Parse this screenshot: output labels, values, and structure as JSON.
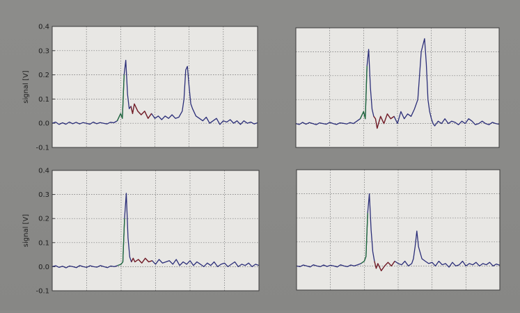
{
  "colors": {
    "background": "#8a8a88",
    "plot_face": "#e8e7e4",
    "frame": "#3a3a3a",
    "grid": "#6f6f6f",
    "trace_main": "#2a2d78",
    "trace_onset": "#1f6b3a",
    "trace_detail": "#7a1e22"
  },
  "chart_data": [
    {
      "type": "line",
      "ylabel": "signal [V]",
      "ylim": [
        -0.1,
        0.4
      ],
      "xlim": [
        0,
        6
      ],
      "yticks": [
        "-0.1",
        "0.0",
        "0.1",
        "0.2",
        "0.3",
        "0.4"
      ],
      "grid": true,
      "series": [
        {
          "color": "#2a2d78",
          "x": [
            0,
            0.1,
            0.2,
            0.3,
            0.4,
            0.5,
            0.6,
            0.7,
            0.8,
            0.9,
            1.0,
            1.1,
            1.2,
            1.3,
            1.4,
            1.5,
            1.6,
            1.7,
            1.8,
            1.9,
            2.0,
            2.05,
            2.1,
            2.15,
            2.2,
            2.25,
            2.3,
            2.35,
            2.4,
            2.5,
            2.6,
            2.7,
            2.8,
            2.9,
            3.0,
            3.1,
            3.2,
            3.3,
            3.4,
            3.5,
            3.6,
            3.7,
            3.8,
            3.85,
            3.9,
            3.95,
            4.0,
            4.05,
            4.1,
            4.2,
            4.3,
            4.4,
            4.5,
            4.6,
            4.7,
            4.8,
            4.9,
            5.0,
            5.1,
            5.2,
            5.3,
            5.4,
            5.5,
            5.6,
            5.7,
            5.8,
            5.9,
            6.0
          ],
          "y": [
            0.0,
            0.005,
            -0.005,
            0.002,
            -0.004,
            0.005,
            -0.002,
            0.004,
            -0.003,
            0.003,
            0.0,
            -0.004,
            0.005,
            -0.002,
            0.003,
            0.0,
            -0.003,
            0.004,
            0.002,
            0.01,
            0.04,
            0.02,
            0.2,
            0.26,
            0.12,
            0.06,
            0.07,
            0.04,
            0.08,
            0.05,
            0.035,
            0.05,
            0.02,
            0.04,
            0.02,
            0.03,
            0.015,
            0.03,
            0.02,
            0.035,
            0.02,
            0.025,
            0.05,
            0.1,
            0.22,
            0.235,
            0.15,
            0.08,
            0.06,
            0.03,
            0.02,
            0.01,
            0.025,
            0.0,
            0.01,
            0.02,
            -0.005,
            0.01,
            0.005,
            0.015,
            0.0,
            0.01,
            -0.005,
            0.01,
            0.0,
            0.005,
            -0.003,
            0.002
          ]
        }
      ]
    },
    {
      "type": "line",
      "ylabel": "",
      "ylim": [
        -0.1,
        0.4
      ],
      "xlim": [
        0,
        6
      ],
      "yticks": [],
      "grid": true,
      "series": [
        {
          "color": "#2a2d78",
          "x": [
            0,
            0.1,
            0.2,
            0.3,
            0.4,
            0.5,
            0.6,
            0.7,
            0.8,
            0.9,
            1.0,
            1.1,
            1.2,
            1.3,
            1.4,
            1.5,
            1.6,
            1.7,
            1.8,
            1.9,
            2.0,
            2.05,
            2.1,
            2.15,
            2.2,
            2.25,
            2.3,
            2.35,
            2.4,
            2.5,
            2.6,
            2.7,
            2.8,
            2.9,
            3.0,
            3.1,
            3.2,
            3.3,
            3.4,
            3.5,
            3.6,
            3.7,
            3.8,
            3.85,
            3.9,
            3.95,
            4.0,
            4.05,
            4.1,
            4.2,
            4.3,
            4.4,
            4.5,
            4.6,
            4.7,
            4.8,
            4.9,
            5.0,
            5.1,
            5.2,
            5.3,
            5.4,
            5.5,
            5.6,
            5.7,
            5.8,
            5.9,
            6.0
          ],
          "y": [
            0.0,
            -0.004,
            0.005,
            -0.003,
            0.004,
            0.0,
            -0.005,
            0.003,
            0.0,
            -0.003,
            0.005,
            0.0,
            -0.004,
            0.003,
            0.001,
            -0.002,
            0.004,
            0.0,
            0.01,
            0.02,
            0.05,
            0.02,
            0.24,
            0.31,
            0.15,
            0.06,
            0.03,
            0.02,
            -0.02,
            0.03,
            0.0,
            0.04,
            0.02,
            0.03,
            0.0,
            0.05,
            0.02,
            0.04,
            0.03,
            0.06,
            0.1,
            0.3,
            0.355,
            0.25,
            0.1,
            0.05,
            0.02,
            0.0,
            -0.01,
            0.01,
            0.0,
            0.02,
            0.0,
            0.01,
            0.005,
            -0.005,
            0.01,
            0.0,
            0.02,
            0.01,
            -0.005,
            0.0,
            0.01,
            0.0,
            -0.005,
            0.005,
            0.0,
            -0.003
          ]
        }
      ]
    },
    {
      "type": "line",
      "ylabel": "signal [V]",
      "ylim": [
        -0.1,
        0.4
      ],
      "xlim": [
        0,
        6
      ],
      "yticks": [
        "-0.1",
        "0.0",
        "0.1",
        "0.2",
        "0.3",
        "0.4"
      ],
      "grid": true,
      "series": [
        {
          "color": "#2a2d78",
          "x": [
            0,
            0.1,
            0.2,
            0.3,
            0.4,
            0.5,
            0.6,
            0.7,
            0.8,
            0.9,
            1.0,
            1.1,
            1.2,
            1.3,
            1.4,
            1.5,
            1.6,
            1.7,
            1.8,
            1.9,
            2.0,
            2.05,
            2.1,
            2.15,
            2.2,
            2.25,
            2.3,
            2.35,
            2.4,
            2.5,
            2.6,
            2.7,
            2.8,
            2.9,
            3.0,
            3.1,
            3.2,
            3.3,
            3.4,
            3.5,
            3.6,
            3.7,
            3.8,
            3.9,
            4.0,
            4.1,
            4.2,
            4.3,
            4.4,
            4.5,
            4.6,
            4.7,
            4.8,
            4.9,
            5.0,
            5.1,
            5.2,
            5.3,
            5.4,
            5.5,
            5.6,
            5.7,
            5.8,
            5.9,
            6.0
          ],
          "y": [
            0.0,
            0.004,
            -0.003,
            0.002,
            -0.005,
            0.003,
            0.0,
            -0.004,
            0.005,
            0.0,
            -0.003,
            0.004,
            0.0,
            -0.002,
            0.005,
            0.0,
            -0.004,
            0.003,
            0.0,
            0.005,
            0.01,
            0.02,
            0.2,
            0.305,
            0.12,
            0.04,
            0.02,
            0.035,
            0.02,
            0.03,
            0.015,
            0.035,
            0.02,
            0.025,
            0.01,
            0.03,
            0.015,
            0.02,
            0.025,
            0.01,
            0.03,
            0.005,
            0.02,
            0.01,
            0.025,
            0.005,
            0.02,
            0.01,
            0.0,
            0.015,
            0.005,
            0.02,
            0.0,
            0.01,
            0.015,
            0.0,
            0.01,
            0.02,
            0.0,
            0.01,
            0.005,
            0.015,
            0.0,
            0.01,
            0.005
          ]
        }
      ]
    },
    {
      "type": "line",
      "ylabel": "",
      "ylim": [
        -0.1,
        0.4
      ],
      "xlim": [
        0,
        6
      ],
      "yticks": [],
      "grid": true,
      "series": [
        {
          "color": "#2a2d78",
          "x": [
            0,
            0.1,
            0.2,
            0.3,
            0.4,
            0.5,
            0.6,
            0.7,
            0.8,
            0.9,
            1.0,
            1.1,
            1.2,
            1.3,
            1.4,
            1.5,
            1.6,
            1.7,
            1.8,
            1.9,
            2.0,
            2.05,
            2.1,
            2.15,
            2.2,
            2.25,
            2.3,
            2.35,
            2.4,
            2.5,
            2.6,
            2.7,
            2.8,
            2.9,
            3.0,
            3.1,
            3.2,
            3.3,
            3.4,
            3.45,
            3.5,
            3.55,
            3.6,
            3.7,
            3.8,
            3.9,
            4.0,
            4.1,
            4.2,
            4.3,
            4.4,
            4.5,
            4.6,
            4.7,
            4.8,
            4.9,
            5.0,
            5.1,
            5.2,
            5.3,
            5.4,
            5.5,
            5.6,
            5.7,
            5.8,
            5.9,
            6.0
          ],
          "y": [
            0.0,
            -0.003,
            0.004,
            0.0,
            -0.004,
            0.005,
            0.0,
            -0.003,
            0.004,
            -0.002,
            0.003,
            0.0,
            -0.004,
            0.005,
            0.0,
            -0.003,
            0.004,
            0.0,
            0.005,
            0.01,
            0.02,
            0.04,
            0.22,
            0.3,
            0.15,
            0.06,
            0.02,
            -0.01,
            0.01,
            -0.02,
            0.0,
            0.015,
            0.0,
            0.02,
            0.01,
            0.005,
            0.02,
            0.0,
            0.01,
            0.03,
            0.08,
            0.145,
            0.08,
            0.03,
            0.02,
            0.01,
            0.015,
            0.0,
            0.02,
            0.005,
            0.01,
            -0.005,
            0.015,
            0.0,
            0.005,
            0.02,
            0.0,
            0.01,
            0.005,
            0.015,
            0.0,
            0.01,
            0.005,
            0.015,
            0.0,
            0.008,
            0.003
          ]
        }
      ]
    }
  ]
}
